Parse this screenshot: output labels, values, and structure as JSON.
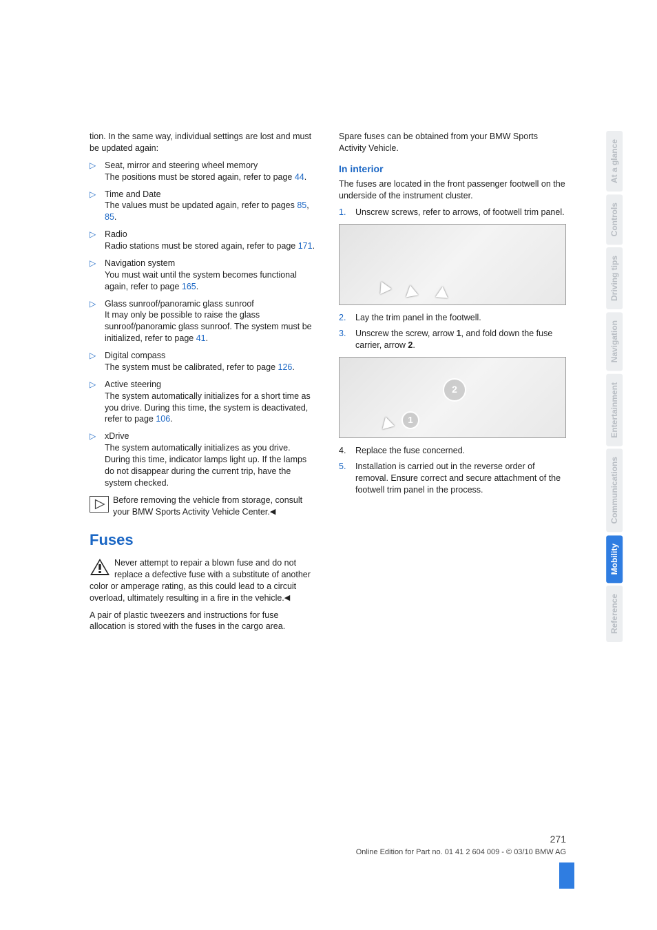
{
  "left": {
    "intro": "tion. In the same way, individual settings are lost and must be updated again:",
    "bullets": [
      {
        "title": "Seat, mirror and steering wheel memory",
        "body_pre": "The positions must be stored again, refer to page ",
        "link": "44",
        "body_post": "."
      },
      {
        "title": "Time and Date",
        "body_pre": "The values must be updated again, refer to pages ",
        "link": "85",
        "link2": "85",
        "body_post": "."
      },
      {
        "title": "Radio",
        "body_pre": "Radio stations must be stored again, refer to page ",
        "link": "171",
        "body_post": "."
      },
      {
        "title": "Navigation system",
        "body_pre": "You must wait until the system becomes functional again, refer to page ",
        "link": "165",
        "body_post": "."
      },
      {
        "title": "Glass sunroof/panoramic glass sunroof",
        "body_pre": "It may only be possible to raise the glass sunroof/panoramic glass sunroof. The system must be initialized, refer to page ",
        "link": "41",
        "body_post": "."
      },
      {
        "title": "Digital compass",
        "body_pre": "The system must be calibrated, refer to page ",
        "link": "126",
        "body_post": "."
      },
      {
        "title": "Active steering",
        "body_pre": "The system automatically initializes for a short time as you drive. During this time, the system is deactivated, refer to page ",
        "link": "106",
        "body_post": "."
      },
      {
        "title": "xDrive",
        "body_plain": "The system automatically initializes as you drive. During this time, indicator lamps light up. If the lamps do not disappear during the current trip, have the system checked."
      }
    ],
    "note": "Before removing the vehicle from storage, consult your BMW Sports Activity Vehicle Center.",
    "fuses_heading": "Fuses",
    "warn": "Never attempt to repair a blown fuse and do not replace a defective fuse with a substitute of another color or amperage rating, as this could lead to a circuit overload, ultimately resulting in a fire in the vehicle.",
    "after_warn": "A pair of plastic tweezers and instructions for fuse allocation is stored with the fuses in the cargo area."
  },
  "right": {
    "spare": "Spare fuses can be obtained from your BMW Sports Activity Vehicle.",
    "interior_heading": "In interior",
    "interior_intro": "The fuses are located in the front passenger footwell on the underside of the instrument cluster.",
    "steps_a": [
      {
        "n": "1.",
        "text": "Unscrew screws, refer to arrows, of footwell trim panel."
      }
    ],
    "steps_b": [
      {
        "n": "2.",
        "text": "Lay the trim panel in the footwell."
      },
      {
        "n": "3.",
        "text_pre": "Unscrew the screw, arrow ",
        "b1": "1",
        "mid": ", and fold down the fuse carrier, arrow ",
        "b2": "2",
        "post": "."
      }
    ],
    "steps_c": [
      {
        "n": "4.",
        "text": "Replace the fuse concerned.",
        "black": true
      },
      {
        "n": "5.",
        "text": "Installation is carried out in the reverse order of removal. Ensure correct and secure attachment of the footwell trim panel in the process."
      }
    ]
  },
  "tabs": [
    "At a glance",
    "Controls",
    "Driving tips",
    "Navigation",
    "Entertainment",
    "Communications",
    "Mobility",
    "Reference"
  ],
  "active_tab_index": 6,
  "footer": {
    "page": "271",
    "line": "Online Edition for Part no. 01 41 2 604 009 - © 03/10 BMW AG"
  },
  "colors": {
    "link": "#1a66c4",
    "tab_active_bg": "#2f7de1",
    "tab_inactive_bg": "#eceef0",
    "tab_inactive_fg": "#b8bdc3"
  }
}
